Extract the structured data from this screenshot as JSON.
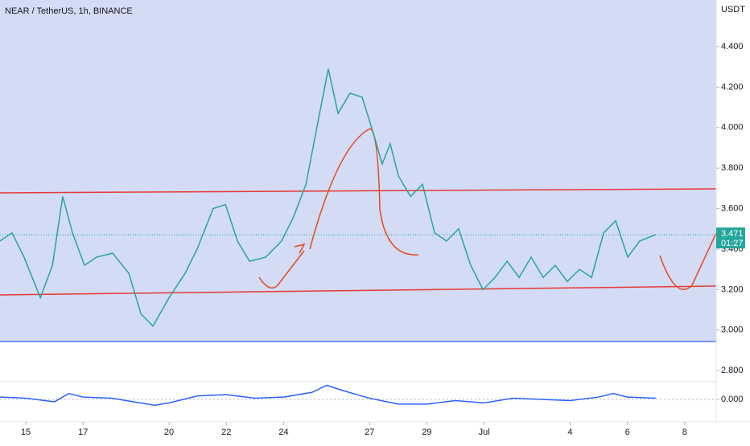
{
  "chart_data": [
    {
      "type": "line",
      "title": "NEAR / TetherUS, 1h, BINANCE",
      "unit": "USDT",
      "x": [
        -0.9,
        -0.48,
        -0.06,
        0.51,
        0.93,
        1.29,
        1.63,
        2.05,
        2.47,
        3.03,
        3.6,
        4.02,
        4.44,
        5.0,
        5.56,
        5.98,
        6.54,
        6.97,
        7.39,
        7.81,
        8.37,
        8.93,
        9.35,
        9.78,
        10.2,
        10.56,
        10.9,
        11.32,
        11.74,
        12.16,
        12.44,
        12.72,
        13.01,
        13.43,
        13.85,
        14.27,
        14.69,
        15.11,
        15.53,
        15.96,
        16.38,
        16.8,
        17.22,
        17.64,
        18.06,
        18.48,
        18.9,
        19.33,
        19.75,
        20.17,
        20.59,
        21.01,
        21.43,
        21.99
      ],
      "values": [
        3.44,
        3.48,
        3.36,
        3.16,
        3.32,
        3.66,
        3.48,
        3.32,
        3.36,
        3.38,
        3.28,
        3.08,
        3.02,
        3.16,
        3.28,
        3.4,
        3.6,
        3.62,
        3.44,
        3.34,
        3.36,
        3.44,
        3.56,
        3.72,
        4.03,
        4.29,
        4.07,
        4.17,
        4.15,
        3.96,
        3.82,
        3.92,
        3.76,
        3.66,
        3.72,
        3.48,
        3.44,
        3.5,
        3.32,
        3.2,
        3.26,
        3.34,
        3.26,
        3.36,
        3.26,
        3.32,
        3.24,
        3.3,
        3.26,
        3.48,
        3.54,
        3.36,
        3.44,
        3.471
      ],
      "color": "#26a69a",
      "last_value": 3.471,
      "countdown": "01:27",
      "xlim": [
        -0.9,
        24.1
      ],
      "ylim": [
        2.765,
        4.63
      ],
      "xticks": [
        {
          "value": 0,
          "label": "15"
        },
        {
          "value": 2,
          "label": "17"
        },
        {
          "value": 5,
          "label": "20"
        },
        {
          "value": 7,
          "label": "22"
        },
        {
          "value": 9,
          "label": "24"
        },
        {
          "value": 12,
          "label": "27"
        },
        {
          "value": 14,
          "label": "29"
        },
        {
          "value": 16,
          "label": "Jul"
        },
        {
          "value": 19,
          "label": "4"
        },
        {
          "value": 21,
          "label": "6"
        },
        {
          "value": 23,
          "label": "8"
        }
      ],
      "yticks": [
        {
          "value": 2.8,
          "label": "2.800"
        },
        {
          "value": 3.0,
          "label": "3.000"
        },
        {
          "value": 3.2,
          "label": "3.200"
        },
        {
          "value": 3.4,
          "label": "3.400"
        },
        {
          "value": 3.6,
          "label": "3.600"
        },
        {
          "value": 3.8,
          "label": "3.800"
        },
        {
          "value": 4.0,
          "label": "4.000"
        },
        {
          "value": 4.2,
          "label": "4.200"
        },
        {
          "value": 4.4,
          "label": "4.400"
        }
      ]
    },
    {
      "type": "line",
      "x": [
        -0.9,
        0,
        1,
        1.5,
        2,
        3,
        4,
        4.5,
        5,
        6,
        7,
        8,
        9,
        10,
        10.5,
        11,
        12,
        13,
        14,
        15,
        16,
        17,
        18,
        19,
        20,
        20.5,
        21,
        22
      ],
      "values": [
        0.004,
        0.002,
        -0.004,
        0.01,
        0.004,
        0.002,
        -0.006,
        -0.01,
        -0.006,
        0.006,
        0.008,
        0.002,
        0.004,
        0.012,
        0.024,
        0.016,
        0.002,
        -0.008,
        -0.008,
        -0.002,
        -0.006,
        0.002,
        0.0,
        -0.002,
        0.004,
        0.01,
        0.004,
        0.002
      ],
      "color": "#2962ff",
      "xlim": [
        -0.9,
        24.1
      ],
      "ylim": [
        -0.03,
        0.03
      ],
      "yticks": [
        {
          "value": 0,
          "label": "0.000"
        }
      ]
    }
  ]
}
